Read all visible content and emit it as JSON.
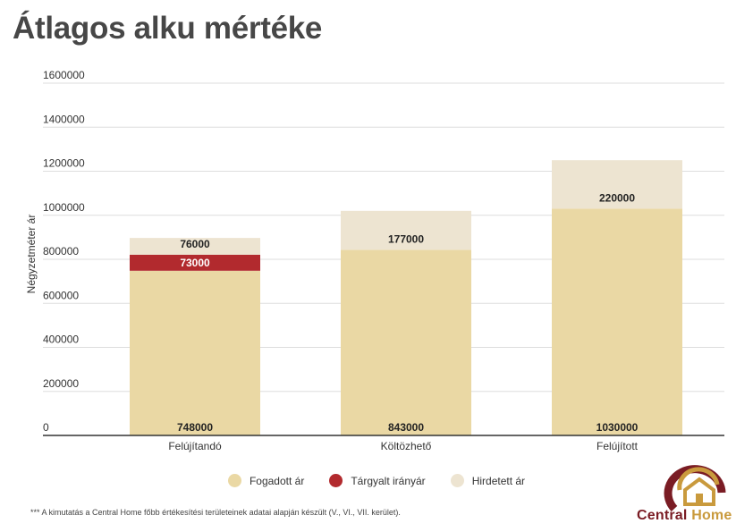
{
  "chart_data": {
    "type": "bar",
    "stacked": true,
    "title": "Átlagos alku mértéke",
    "ylabel": "Négyzetméter ár",
    "xlabel": "",
    "ylim": [
      0,
      1600000
    ],
    "yticks": [
      "0",
      "200000",
      "400000",
      "600000",
      "800000",
      "1000000",
      "1200000",
      "1400000",
      "1600000"
    ],
    "categories": [
      "Felújítandó",
      "Költözhető",
      "Felújított"
    ],
    "series": [
      {
        "name": "Fogadott ár",
        "color": "#ead8a4",
        "values": [
          748000,
          843000,
          1030000
        ],
        "labels": [
          "748000",
          "843000",
          "1030000"
        ]
      },
      {
        "name": "Tárgyalt irányár",
        "color": "#b22a2e",
        "values": [
          73000,
          0,
          0
        ],
        "labels": [
          "73000",
          "",
          ""
        ]
      },
      {
        "name": "Hirdetett ár",
        "color": "#ede4d1",
        "values": [
          76000,
          177000,
          220000
        ],
        "labels": [
          "76000",
          "177000",
          "220000"
        ]
      }
    ],
    "grid": true,
    "legend_position": "bottom"
  },
  "footnote": "*** A kimutatás a Central Home főbb értékesítési területeinek adatai alapján készült (V., VI., VII. kerület).",
  "logo": {
    "word1": "Central",
    "word2": "Home"
  }
}
